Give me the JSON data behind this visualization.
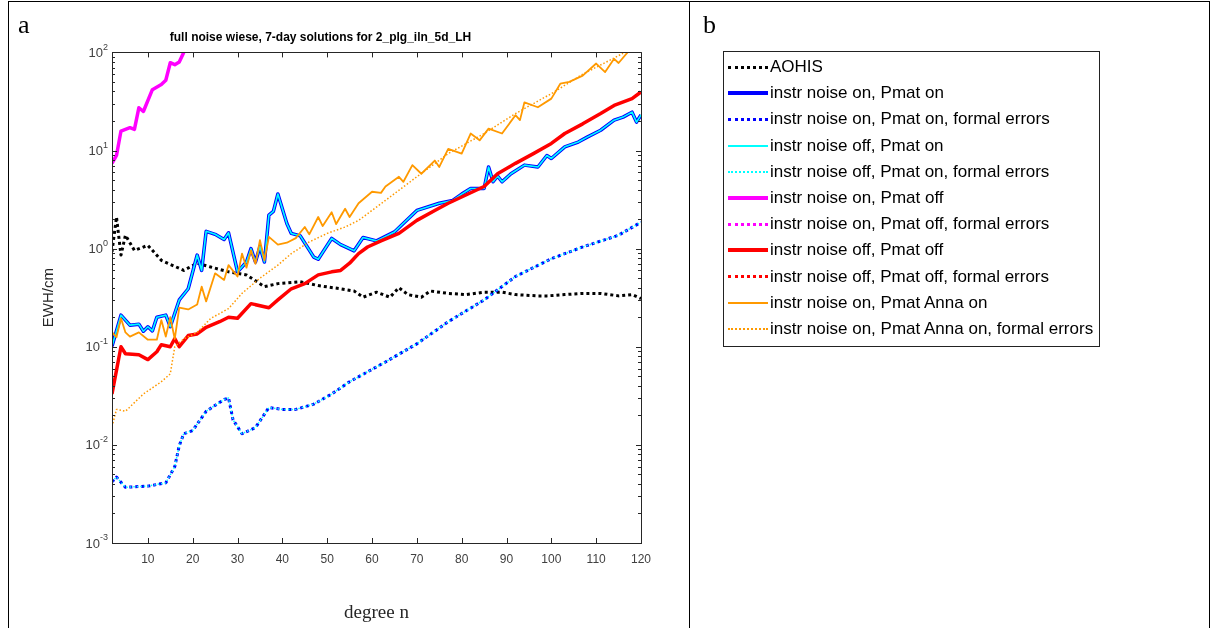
{
  "chart_data": {
    "type": "line",
    "title": "full noise wiese, 7-day solutions for 2_plg_iln_5d_LH",
    "xlabel": "degree n",
    "ylabel": "EWH/cm",
    "annotations": [
      "a",
      "b"
    ],
    "log": "y",
    "grid": false,
    "legend": "right",
    "marker": "none",
    "xlim": [
      2,
      120
    ],
    "xticks": [
      10,
      20,
      30,
      40,
      50,
      60,
      70,
      80,
      90,
      100,
      110,
      120
    ],
    "ylim": [
      0.001,
      100
    ],
    "yticks": [
      {
        "value": 0.001,
        "label": "10$^{-3}$"
      },
      {
        "value": 0.002,
        "label": null
      },
      {
        "value": 0.003,
        "label": null
      },
      {
        "value": 0.004,
        "label": null
      },
      {
        "value": 0.005,
        "label": null
      },
      {
        "value": 0.006,
        "label": null
      },
      {
        "value": 0.007,
        "label": null
      },
      {
        "value": 0.008,
        "label": null
      },
      {
        "value": 0.009,
        "label": null
      },
      {
        "value": 0.01,
        "label": "10$^{-2}$"
      },
      {
        "value": 0.02,
        "label": null
      },
      {
        "value": 0.03,
        "label": null
      },
      {
        "value": 0.04,
        "label": null
      },
      {
        "value": 0.05,
        "label": null
      },
      {
        "value": 0.06,
        "label": null
      },
      {
        "value": 0.07,
        "label": null
      },
      {
        "value": 0.08,
        "label": null
      },
      {
        "value": 0.09,
        "label": null
      },
      {
        "value": 0.1,
        "label": "10$^{-1}$"
      },
      {
        "value": 0.2,
        "label": null
      },
      {
        "value": 0.3,
        "label": null
      },
      {
        "value": 0.4,
        "label": null
      },
      {
        "value": 0.5,
        "label": null
      },
      {
        "value": 0.6,
        "label": null
      },
      {
        "value": 0.7,
        "label": null
      },
      {
        "value": 0.8,
        "label": null
      },
      {
        "value": 0.9,
        "label": null
      },
      {
        "value": 1,
        "label": "10$^{0}$"
      },
      {
        "value": 2,
        "label": null
      },
      {
        "value": 3,
        "label": null
      },
      {
        "value": 4,
        "label": null
      },
      {
        "value": 5,
        "label": null
      },
      {
        "value": 6,
        "label": null
      },
      {
        "value": 7,
        "label": null
      },
      {
        "value": 8,
        "label": null
      },
      {
        "value": 9,
        "label": null
      },
      {
        "value": 10,
        "label": "10$^{1}$"
      },
      {
        "value": 20,
        "label": null
      },
      {
        "value": 30,
        "label": null
      },
      {
        "value": 40,
        "label": null
      },
      {
        "value": 50,
        "label": null
      },
      {
        "value": 60,
        "label": null
      },
      {
        "value": 70,
        "label": null
      },
      {
        "value": 80,
        "label": null
      },
      {
        "value": 90,
        "label": null
      },
      {
        "value": 100,
        "label": "10$^{2}$"
      }
    ],
    "series": [
      {
        "name": "AOHIS",
        "color": "#000000",
        "line_style": "dotted",
        "x": [
          2,
          3,
          4,
          5,
          7,
          10,
          13,
          18,
          21,
          24,
          28,
          32,
          36,
          39,
          44,
          48,
          53,
          56,
          58,
          61,
          64,
          66,
          68,
          71,
          73,
          77,
          81,
          85,
          89,
          92,
          97,
          99,
          103,
          107,
          111,
          115,
          118,
          120
        ],
        "values": [
          0.93,
          2.1,
          0.86,
          1.37,
          0.96,
          1.08,
          0.76,
          0.6,
          0.71,
          0.65,
          0.58,
          0.54,
          0.41,
          0.44,
          0.46,
          0.42,
          0.39,
          0.37,
          0.32,
          0.36,
          0.32,
          0.4,
          0.34,
          0.32,
          0.37,
          0.35,
          0.34,
          0.36,
          0.36,
          0.34,
          0.33,
          0.33,
          0.34,
          0.35,
          0.35,
          0.33,
          0.34,
          0.31
        ]
      },
      {
        "name": "instr noise on, Pmat on",
        "color": "#0000ff",
        "line_style": "solid",
        "x": [
          2,
          4,
          6,
          8,
          9,
          10,
          11,
          12,
          14,
          15,
          17,
          19,
          21,
          22,
          23,
          25,
          27,
          28,
          30,
          32,
          33,
          34,
          35,
          36,
          37,
          38,
          39,
          41,
          42,
          44,
          47,
          48,
          51,
          53,
          56,
          58,
          61,
          65,
          70,
          75,
          78,
          80,
          82,
          85,
          86,
          87,
          88,
          89,
          91,
          94,
          97,
          99,
          100,
          103,
          106,
          108,
          111,
          114,
          116,
          118,
          119,
          120
        ],
        "values": [
          0.101,
          0.21,
          0.166,
          0.17,
          0.144,
          0.16,
          0.145,
          0.2,
          0.21,
          0.16,
          0.3,
          0.39,
          0.86,
          0.6,
          1.5,
          1.4,
          1.24,
          1.45,
          0.58,
          0.73,
          1.0,
          0.73,
          1.05,
          0.73,
          2.2,
          2.4,
          3.6,
          1.8,
          1.43,
          1.35,
          0.82,
          0.78,
          1.27,
          1.1,
          0.95,
          1.3,
          1.2,
          1.48,
          2.45,
          2.9,
          3.1,
          3.6,
          4.1,
          4.1,
          6.8,
          4.8,
          5.5,
          4.8,
          5.8,
          7.1,
          6.8,
          8.9,
          8.3,
          10.9,
          12.2,
          13.7,
          16.1,
          20.4,
          21.9,
          24.6,
          19.5,
          23
        ]
      },
      {
        "name": "instr noise on, Pmat on, formal errors",
        "color": "#0000ff",
        "line_style": "dotted",
        "x": [
          2,
          3,
          5,
          10,
          14,
          16,
          17,
          18,
          20,
          23,
          27,
          28,
          29,
          31,
          34,
          37,
          40,
          43,
          47,
          51,
          55,
          63,
          70,
          77,
          85,
          92,
          100,
          107,
          115,
          120
        ],
        "values": [
          0.0042,
          0.0047,
          0.0037,
          0.0038,
          0.0041,
          0.006,
          0.0098,
          0.013,
          0.014,
          0.022,
          0.029,
          0.03,
          0.018,
          0.013,
          0.015,
          0.024,
          0.023,
          0.023,
          0.026,
          0.033,
          0.044,
          0.07,
          0.107,
          0.18,
          0.3,
          0.52,
          0.79,
          1.04,
          1.37,
          1.86
        ]
      },
      {
        "name": "instr noise off, Pmat on",
        "color": "#00ffff",
        "line_style": "solid",
        "x": [
          2,
          4,
          6,
          8,
          9,
          10,
          11,
          12,
          14,
          15,
          17,
          19,
          21,
          22,
          23,
          25,
          27,
          28,
          30,
          32,
          33,
          34,
          35,
          36,
          37,
          38,
          39,
          41,
          42,
          44,
          47,
          48,
          51,
          53,
          56,
          58,
          61,
          65,
          70,
          75,
          78,
          80,
          82,
          85,
          86,
          87,
          88,
          89,
          91,
          94,
          97,
          99,
          100,
          103,
          106,
          108,
          111,
          114,
          116,
          118,
          119,
          120
        ],
        "values": [
          0.101,
          0.21,
          0.166,
          0.17,
          0.144,
          0.16,
          0.145,
          0.2,
          0.21,
          0.16,
          0.3,
          0.39,
          0.86,
          0.6,
          1.5,
          1.4,
          1.24,
          1.45,
          0.58,
          0.73,
          1.0,
          0.73,
          1.05,
          0.73,
          2.2,
          2.4,
          3.6,
          1.8,
          1.43,
          1.35,
          0.82,
          0.78,
          1.27,
          1.1,
          0.95,
          1.3,
          1.2,
          1.48,
          2.45,
          2.9,
          3.1,
          3.6,
          4.1,
          4.1,
          6.8,
          4.8,
          5.5,
          4.8,
          5.8,
          7.1,
          6.8,
          8.9,
          8.3,
          10.9,
          12.2,
          13.7,
          16.1,
          20.4,
          21.9,
          24.6,
          19.5,
          23
        ]
      },
      {
        "name": "instr noise off, Pmat on, formal errors",
        "color": "#00ffff",
        "line_style": "dotted",
        "x": [
          2,
          3,
          5,
          10,
          14,
          16,
          17,
          18,
          20,
          23,
          27,
          28,
          29,
          31,
          34,
          37,
          40,
          43,
          47,
          51,
          55,
          63,
          70,
          77,
          85,
          92,
          100,
          107,
          115,
          120
        ],
        "values": [
          0.0042,
          0.0047,
          0.0037,
          0.0038,
          0.0041,
          0.006,
          0.0098,
          0.013,
          0.014,
          0.022,
          0.029,
          0.03,
          0.018,
          0.013,
          0.015,
          0.024,
          0.023,
          0.023,
          0.026,
          0.033,
          0.044,
          0.07,
          0.107,
          0.18,
          0.3,
          0.52,
          0.79,
          1.04,
          1.37,
          1.86
        ]
      },
      {
        "name": "instr noise on, Pmat off",
        "color": "#ff00ff",
        "line_style": "solid",
        "x": [
          2,
          3,
          4,
          6,
          7,
          8,
          9,
          11,
          13,
          14,
          15,
          16,
          17,
          18
        ],
        "values": [
          7.4,
          8.9,
          15.8,
          17.1,
          16.4,
          27.3,
          25,
          41.7,
          47,
          52,
          78.5,
          75,
          80,
          100
        ]
      },
      {
        "name": "instr noise on, Pmat off, formal errors",
        "color": "#ff00ff",
        "line_style": "dotted"
      },
      {
        "name": "instr noise off, Pmat off",
        "color": "#ff0000",
        "line_style": "solid",
        "x": [
          2,
          4,
          5,
          8,
          10,
          12,
          13,
          15,
          16,
          17,
          19,
          21,
          23,
          26,
          28,
          30,
          33,
          37,
          39,
          42,
          45,
          48,
          51,
          53,
          55,
          57,
          59,
          62,
          66,
          70,
          74,
          77,
          85,
          88,
          92,
          96,
          100,
          103,
          107,
          111,
          114,
          118,
          120
        ],
        "values": [
          0.033,
          0.1,
          0.085,
          0.083,
          0.074,
          0.089,
          0.105,
          0.1,
          0.121,
          0.1,
          0.13,
          0.135,
          0.158,
          0.18,
          0.2,
          0.195,
          0.275,
          0.25,
          0.3,
          0.39,
          0.44,
          0.54,
          0.58,
          0.6,
          0.71,
          0.89,
          1.04,
          1.2,
          1.43,
          1.94,
          2.45,
          2.9,
          4.3,
          5.8,
          7.4,
          9.3,
          11.8,
          14.9,
          18.7,
          23.8,
          28.8,
          33.8,
          39.5
        ]
      },
      {
        "name": "instr noise off, Pmat off, formal errors",
        "color": "#ff0000",
        "line_style": "dotted"
      },
      {
        "name": "instr noise on, Pmat Anna on",
        "color": "#ff9900",
        "line_style": "solid",
        "x": [
          2,
          3,
          4,
          5,
          6,
          8,
          10,
          12,
          13,
          14,
          15,
          16,
          17,
          19,
          21,
          22,
          23,
          25,
          27,
          28,
          30,
          31,
          32,
          33,
          34,
          35,
          36,
          37,
          39,
          41,
          43,
          45,
          46,
          48,
          49,
          51,
          52,
          54,
          55,
          57,
          60,
          62,
          63,
          66,
          67,
          69,
          71,
          74,
          75,
          77,
          80,
          82,
          84,
          86,
          89,
          92,
          93,
          94,
          97,
          100,
          102,
          104,
          107,
          110,
          112,
          114,
          115,
          117
        ],
        "values": [
          0.141,
          0.125,
          0.195,
          0.14,
          0.127,
          0.14,
          0.118,
          0.118,
          0.187,
          0.127,
          0.2,
          0.12,
          0.25,
          0.24,
          0.27,
          0.41,
          0.29,
          0.56,
          0.48,
          0.68,
          0.52,
          0.89,
          0.64,
          0.96,
          0.7,
          1.22,
          0.76,
          1.32,
          1.1,
          1.15,
          1.28,
          1.66,
          1.4,
          2.1,
          1.7,
          2.35,
          1.78,
          2.55,
          2.1,
          2.9,
          3.8,
          3.7,
          4.3,
          5.4,
          4.8,
          7.1,
          5.8,
          7.9,
          6.8,
          10.4,
          9.3,
          14.9,
          12.7,
          16.7,
          14.9,
          22.9,
          20.4,
          31,
          27.6,
          33.8,
          48,
          50,
          58,
          77,
          63,
          86,
          78,
          100
        ]
      },
      {
        "name": "instr noise on, Pmat Anna on, formal errors",
        "color": "#ff9900",
        "line_style": "dotted",
        "x": [
          2,
          3,
          5,
          9,
          13,
          15,
          16,
          18,
          21,
          24,
          28,
          31,
          35,
          39,
          42,
          46,
          50,
          54,
          57,
          63,
          70,
          77,
          85,
          92,
          100,
          107,
          113,
          116
        ],
        "values": [
          0.0153,
          0.023,
          0.022,
          0.033,
          0.044,
          0.053,
          0.1,
          0.12,
          0.14,
          0.194,
          0.245,
          0.35,
          0.5,
          0.68,
          0.89,
          1.17,
          1.43,
          1.66,
          1.94,
          3.1,
          5.4,
          9.3,
          14.9,
          23.8,
          38,
          60,
          83,
          98
        ]
      }
    ]
  }
}
